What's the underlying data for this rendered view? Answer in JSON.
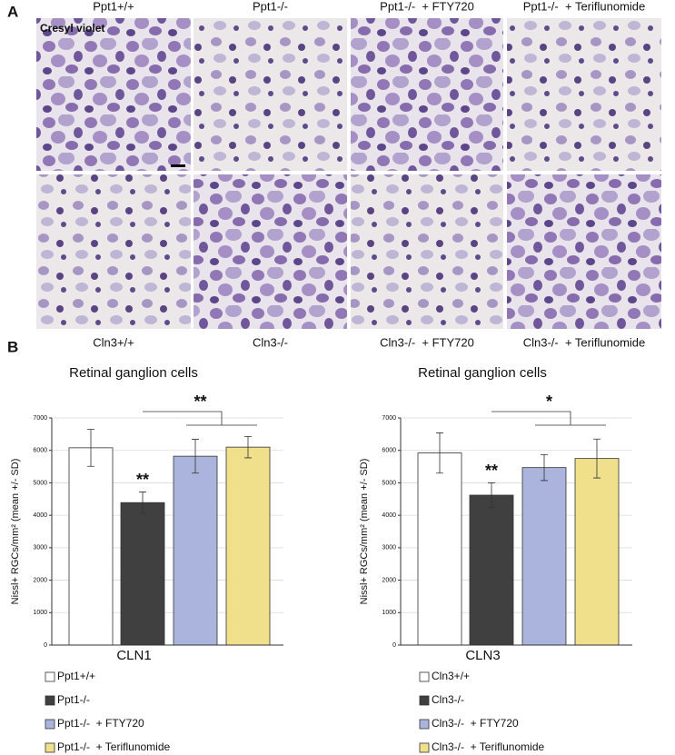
{
  "panel_a": {
    "label": "A",
    "stain": "Cresyl violet",
    "top_captions": [
      "Ppt1+/+",
      "Ppt1-/-",
      "Ppt1-/-  + FTY720",
      "Ppt1-/-  + Teriflunomide"
    ],
    "bottom_captions": [
      "Cln3+/+",
      "Cln3-/-",
      "Cln3-/-  + FTY720",
      "Cln3-/-  + Teriflunomide"
    ]
  },
  "panel_b_label": "B",
  "chart_data": [
    {
      "type": "bar",
      "title": "Retinal ganglion cells",
      "y_label": "Nissl+ RGCs/mm² (mean +/- SD)",
      "x_label": "CLN1",
      "ylim": [
        0,
        7000
      ],
      "yticks": [
        0,
        1000,
        2000,
        3000,
        4000,
        5000,
        6000,
        7000
      ],
      "grid": true,
      "series": [
        {
          "name": "Ppt1+/+",
          "color": "#ffffff",
          "values": [
            6080
          ],
          "errors": [
            570
          ]
        },
        {
          "name": "Ppt1-/-",
          "color": "#404040",
          "values": [
            4390
          ],
          "errors": [
            330
          ]
        },
        {
          "name": "Ppt1-/-  + FTY720",
          "color": "#aab4dc",
          "values": [
            5820
          ],
          "errors": [
            520
          ]
        },
        {
          "name": "Ppt1-/-  + Teriflunomide",
          "color": "#f0e08c",
          "values": [
            6100
          ],
          "errors": [
            330
          ]
        }
      ],
      "annotations": [
        "**",
        "**"
      ]
    },
    {
      "type": "bar",
      "title": "Retinal ganglion cells",
      "y_label": "Nissl+ RGCs/mm² (mean +/- SD)",
      "x_label": "CLN3",
      "ylim": [
        0,
        7000
      ],
      "yticks": [
        0,
        1000,
        2000,
        3000,
        4000,
        5000,
        6000,
        7000
      ],
      "grid": true,
      "series": [
        {
          "name": "Cln3+/+",
          "color": "#ffffff",
          "values": [
            5920
          ],
          "errors": [
            620
          ]
        },
        {
          "name": "Cln3-/-",
          "color": "#404040",
          "values": [
            4620
          ],
          "errors": [
            380
          ]
        },
        {
          "name": "Cln3-/-  + FTY720",
          "color": "#aab4dc",
          "values": [
            5470
          ],
          "errors": [
            400
          ]
        },
        {
          "name": "Cln3-/-  + Teriflunomide",
          "color": "#f0e08c",
          "values": [
            5750
          ],
          "errors": [
            600
          ]
        }
      ],
      "annotations": [
        "**",
        "*"
      ]
    }
  ]
}
